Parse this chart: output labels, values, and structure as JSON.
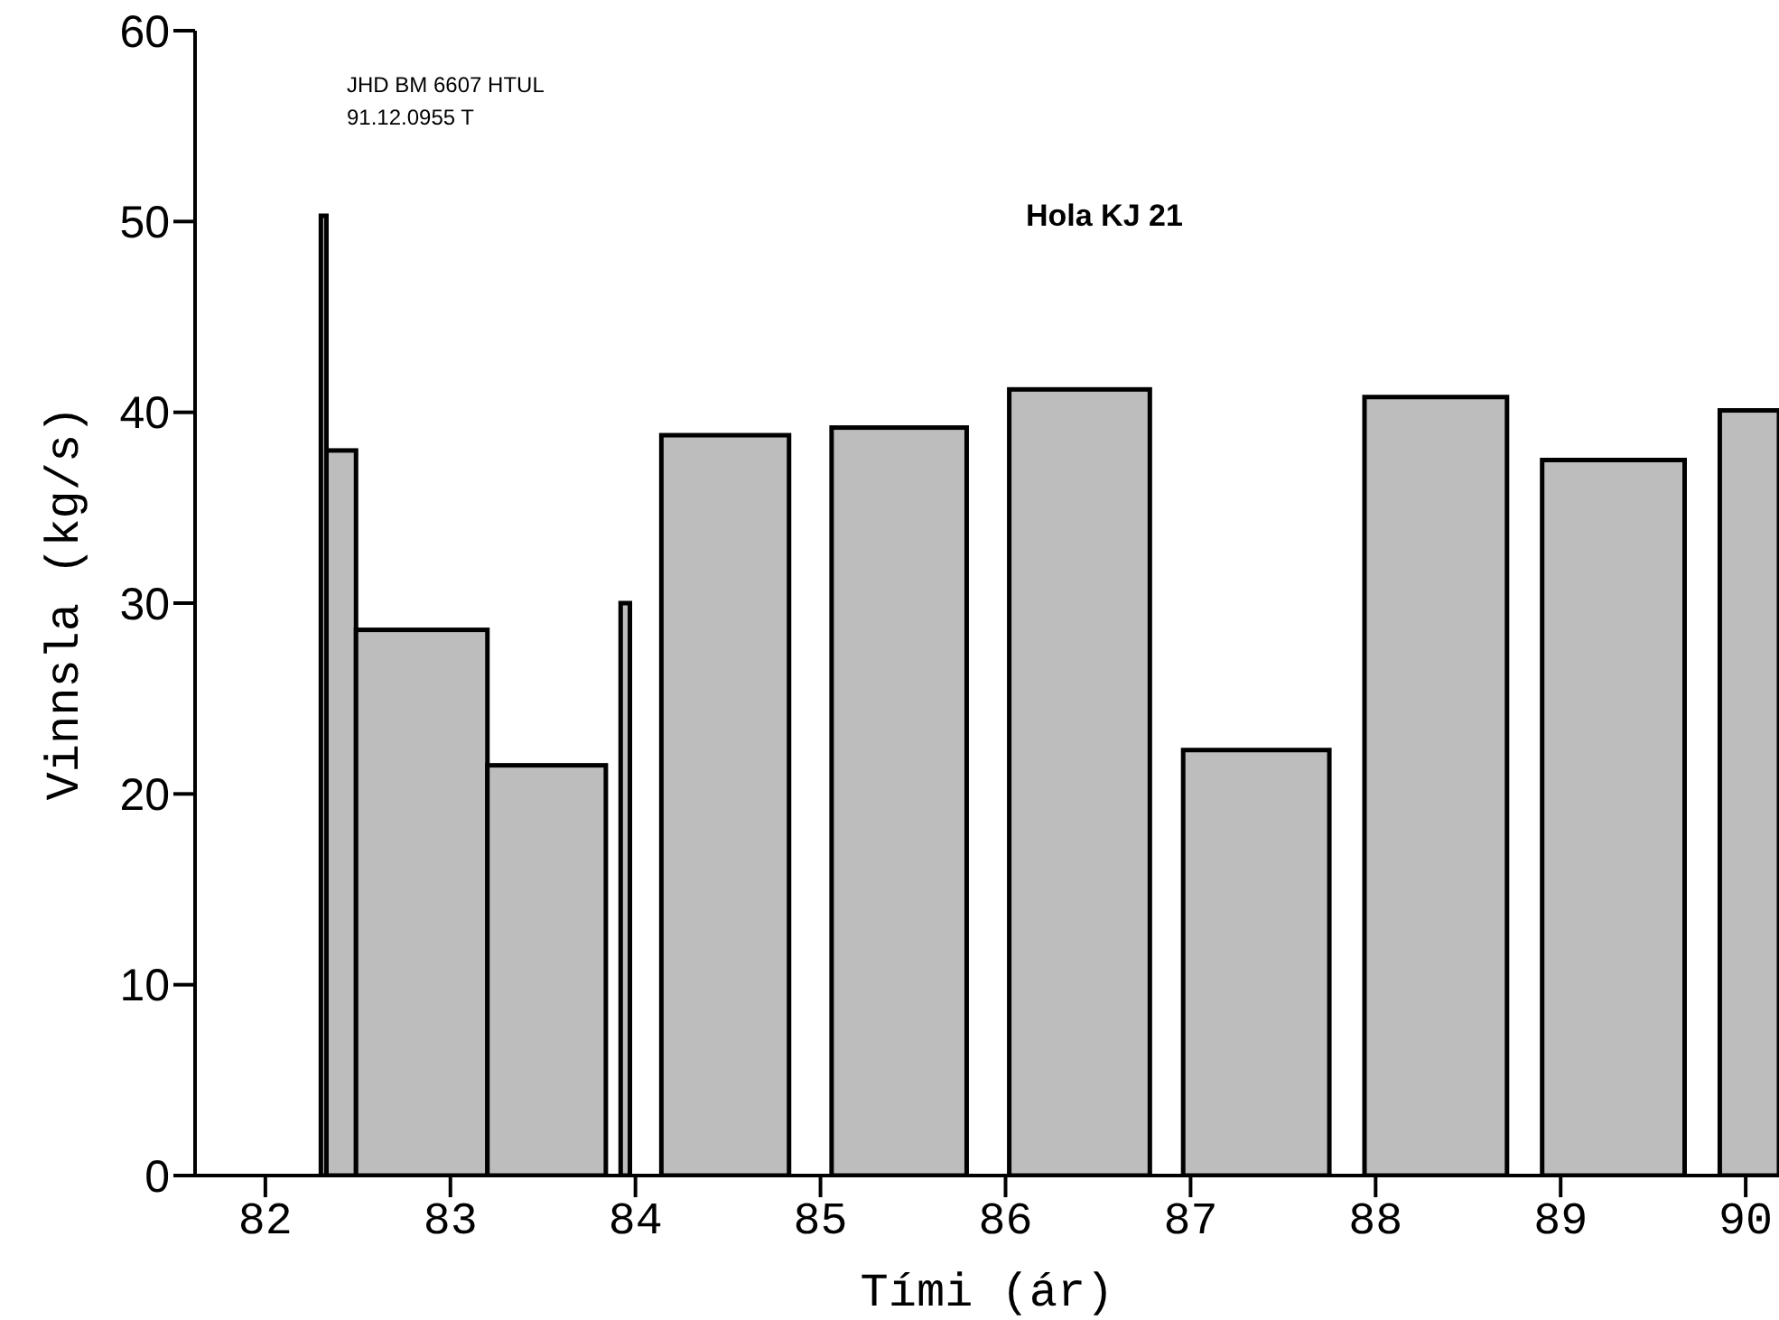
{
  "chart_data": {
    "type": "histogram",
    "title": "Hola KJ 21",
    "xlabel": "Tími  (ár)",
    "ylabel": "Vinnsla  (kg/s)",
    "annotations": [
      "JHD BM 6607 HTUL",
      "91.12.0955 T"
    ],
    "bins": [
      82.3,
      82.33,
      82.49,
      83.2,
      83.84,
      83.92,
      83.97,
      84.14,
      84.83,
      85.06,
      85.79,
      86.02,
      86.78,
      86.96,
      87.75,
      87.94,
      88.71,
      88.9,
      89.67,
      89.86,
      90.18
    ],
    "values": [
      50.3,
      38,
      28.6,
      21.5,
      null,
      30,
      null,
      38.8,
      null,
      39.2,
      null,
      41.2,
      null,
      22.3,
      null,
      40.8,
      null,
      37.5,
      null,
      40.1
    ],
    "color": "#bdbdbd",
    "xlim": [
      81.62,
      90.18
    ],
    "xticks": [
      82,
      83,
      84,
      85,
      86,
      87,
      88,
      89,
      90
    ],
    "ylim": [
      0,
      60
    ],
    "yticks": [
      0,
      10,
      20,
      30,
      40,
      50,
      60
    ],
    "grid": false
  }
}
